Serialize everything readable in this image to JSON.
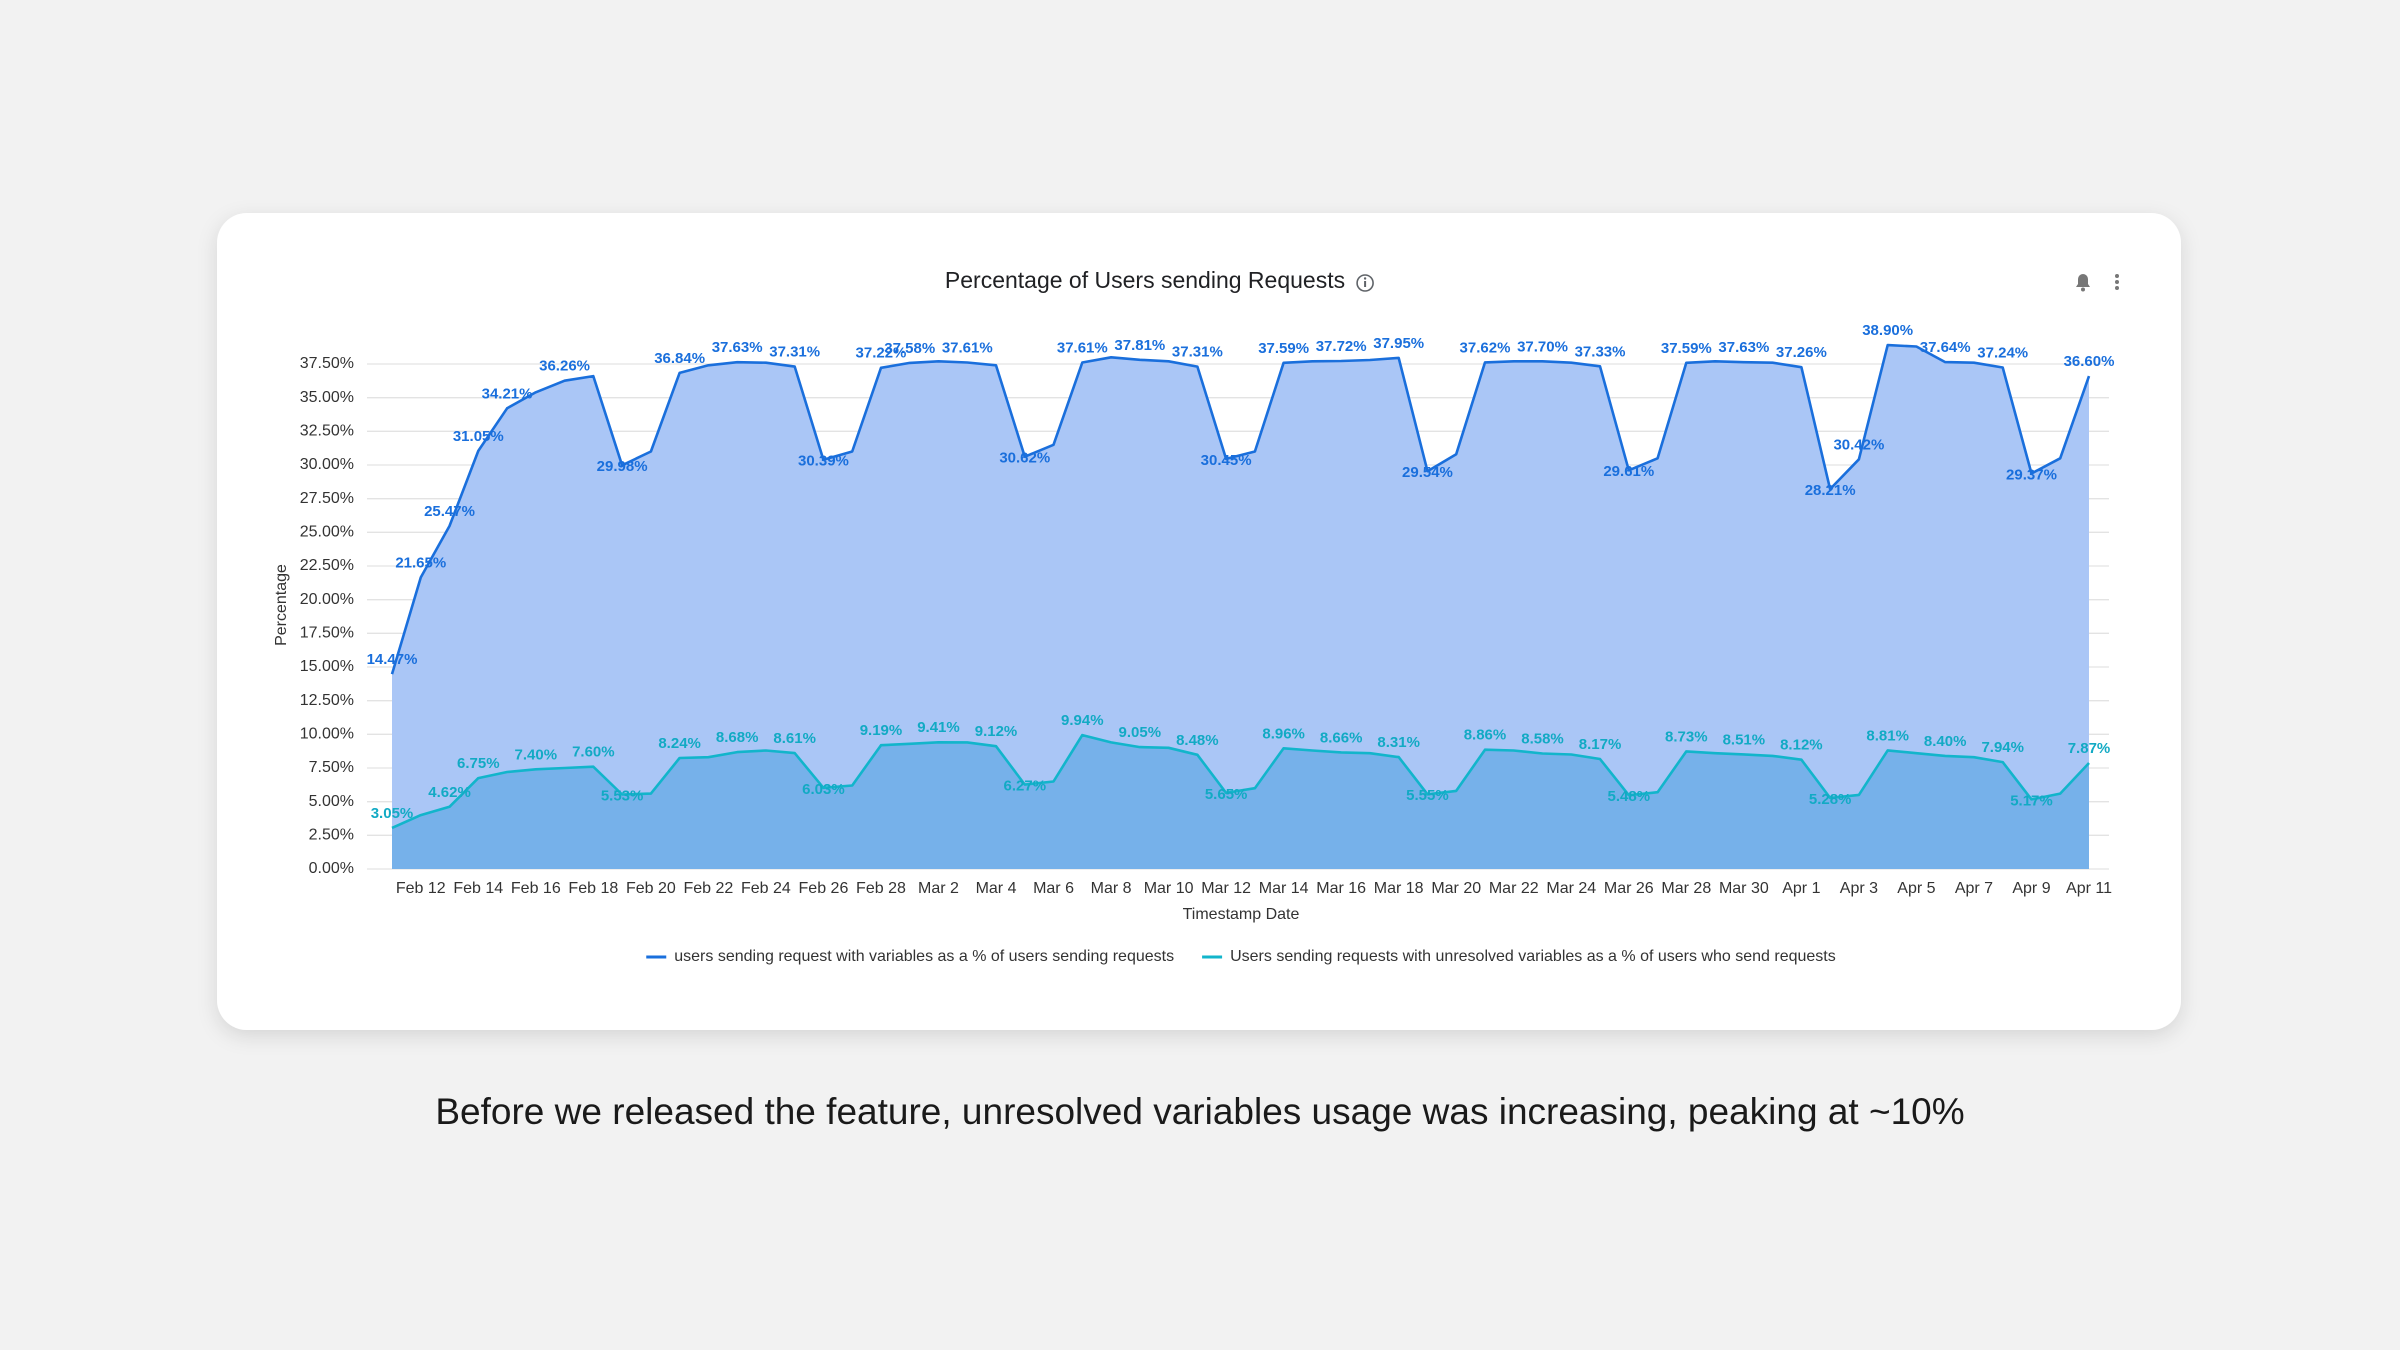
{
  "chart_data": {
    "type": "area",
    "title": "Percentage of Users sending Requests",
    "caption": "Before we released the feature, unresolved variables usage was increasing, peaking at ~10%",
    "xlabel": "Timestamp Date",
    "ylabel": "Percentage",
    "categories": [
      null,
      "Feb 12",
      null,
      "Feb 14",
      null,
      "Feb 16",
      null,
      "Feb 18",
      null,
      "Feb 20",
      null,
      "Feb 22",
      null,
      "Feb 24",
      null,
      "Feb 26",
      null,
      "Feb 28",
      null,
      "Mar 2",
      null,
      "Mar 4",
      null,
      "Mar 6",
      null,
      "Mar 8",
      null,
      "Mar 10",
      null,
      "Mar 12",
      null,
      "Mar 14",
      null,
      "Mar 16",
      null,
      "Mar 18",
      null,
      "Mar 20",
      null,
      "Mar 22",
      null,
      "Mar 24",
      null,
      "Mar 26",
      null,
      "Mar 28",
      null,
      "Mar 30",
      null,
      "Apr 1",
      null,
      "Apr 3",
      null,
      "Apr 5",
      null,
      "Apr 7",
      null,
      "Apr 9",
      null,
      "Apr 11"
    ],
    "ylim": [
      0,
      37.5
    ],
    "yticks": [
      {
        "value": 0,
        "label": "0.00%"
      },
      {
        "value": 2.5,
        "label": "2.50%"
      },
      {
        "value": 5,
        "label": "5.00%"
      },
      {
        "value": 7.5,
        "label": "7.50%"
      },
      {
        "value": 10,
        "label": "10.00%"
      },
      {
        "value": 12.5,
        "label": "12.50%"
      },
      {
        "value": 15,
        "label": "15.00%"
      },
      {
        "value": 17.5,
        "label": "17.50%"
      },
      {
        "value": 20,
        "label": "20.00%"
      },
      {
        "value": 22.5,
        "label": "22.50%"
      },
      {
        "value": 25,
        "label": "25.00%"
      },
      {
        "value": 27.5,
        "label": "27.50%"
      },
      {
        "value": 30,
        "label": "30.00%"
      },
      {
        "value": 32.5,
        "label": "32.50%"
      },
      {
        "value": 35,
        "label": "35.00%"
      },
      {
        "value": 37.5,
        "label": "37.50%"
      }
    ],
    "grid": true,
    "series": [
      {
        "name": "users sending request with variables as a % of users sending requests",
        "color": "#1a6fdc",
        "area_color": "#aac6f6",
        "label_color": "#1a6fdc",
        "values": [
          14.47,
          21.65,
          25.47,
          31.05,
          34.21,
          35.4,
          36.26,
          36.6,
          29.98,
          31.0,
          36.84,
          37.4,
          37.63,
          37.6,
          37.31,
          30.39,
          31.0,
          37.22,
          37.58,
          37.7,
          37.61,
          37.4,
          30.62,
          31.5,
          37.61,
          38.0,
          37.81,
          37.7,
          37.31,
          30.45,
          31.0,
          37.59,
          37.7,
          37.72,
          37.8,
          37.95,
          29.54,
          30.8,
          37.62,
          37.7,
          37.7,
          37.6,
          37.33,
          29.61,
          30.5,
          37.59,
          37.7,
          37.63,
          37.6,
          37.26,
          28.21,
          30.42,
          38.9,
          38.8,
          37.64,
          37.6,
          37.24,
          29.37,
          30.5,
          36.6
        ],
        "value_labels": [
          "14.47%",
          "21.65%",
          "25.47%",
          "31.05%",
          "34.21%",
          null,
          "36.26%",
          null,
          "29.98%",
          null,
          "36.84%",
          null,
          "37.63%",
          null,
          "37.31%",
          "30.39%",
          null,
          "37.22%",
          "37.58%",
          null,
          "37.61%",
          null,
          "30.62%",
          null,
          "37.61%",
          null,
          "37.81%",
          null,
          "37.31%",
          "30.45%",
          null,
          "37.59%",
          null,
          "37.72%",
          null,
          "37.95%",
          "29.54%",
          null,
          "37.62%",
          null,
          "37.70%",
          null,
          "37.33%",
          "29.61%",
          null,
          "37.59%",
          null,
          "37.63%",
          null,
          "37.26%",
          "28.21%",
          "30.42%",
          "38.90%",
          null,
          "37.64%",
          null,
          "37.24%",
          "29.37%",
          null,
          "36.60%"
        ]
      },
      {
        "name": "Users sending requests with unresolved variables as a % of users who send requests",
        "color": "#12b5cb",
        "area_color": "#76b1ea",
        "label_color": "#12aac4",
        "values": [
          3.05,
          4.0,
          4.62,
          6.75,
          7.2,
          7.4,
          7.5,
          7.6,
          5.53,
          5.6,
          8.24,
          8.3,
          8.68,
          8.8,
          8.61,
          6.03,
          6.2,
          9.19,
          9.3,
          9.41,
          9.4,
          9.12,
          6.27,
          6.5,
          9.94,
          9.4,
          9.05,
          9.0,
          8.48,
          5.65,
          6.0,
          8.96,
          8.8,
          8.66,
          8.6,
          8.31,
          5.55,
          5.8,
          8.86,
          8.8,
          8.58,
          8.5,
          8.17,
          5.48,
          5.7,
          8.73,
          8.6,
          8.51,
          8.4,
          8.12,
          5.28,
          5.5,
          8.81,
          8.6,
          8.4,
          8.3,
          7.94,
          5.17,
          5.6,
          7.87
        ],
        "value_labels": [
          "3.05%",
          null,
          "4.62%",
          "6.75%",
          null,
          "7.40%",
          null,
          "7.60%",
          "5.53%",
          null,
          "8.24%",
          null,
          "8.68%",
          null,
          "8.61%",
          "6.03%",
          null,
          "9.19%",
          null,
          "9.41%",
          null,
          "9.12%",
          "6.27%",
          null,
          "9.94%",
          null,
          "9.05%",
          null,
          "8.48%",
          "5.65%",
          null,
          "8.96%",
          null,
          "8.66%",
          null,
          "8.31%",
          "5.55%",
          null,
          "8.86%",
          null,
          "8.58%",
          null,
          "8.17%",
          "5.48%",
          null,
          "8.73%",
          null,
          "8.51%",
          null,
          "8.12%",
          "5.28%",
          null,
          "8.81%",
          null,
          "8.40%",
          null,
          "7.94%",
          "5.17%",
          null,
          "7.87%"
        ]
      }
    ]
  }
}
